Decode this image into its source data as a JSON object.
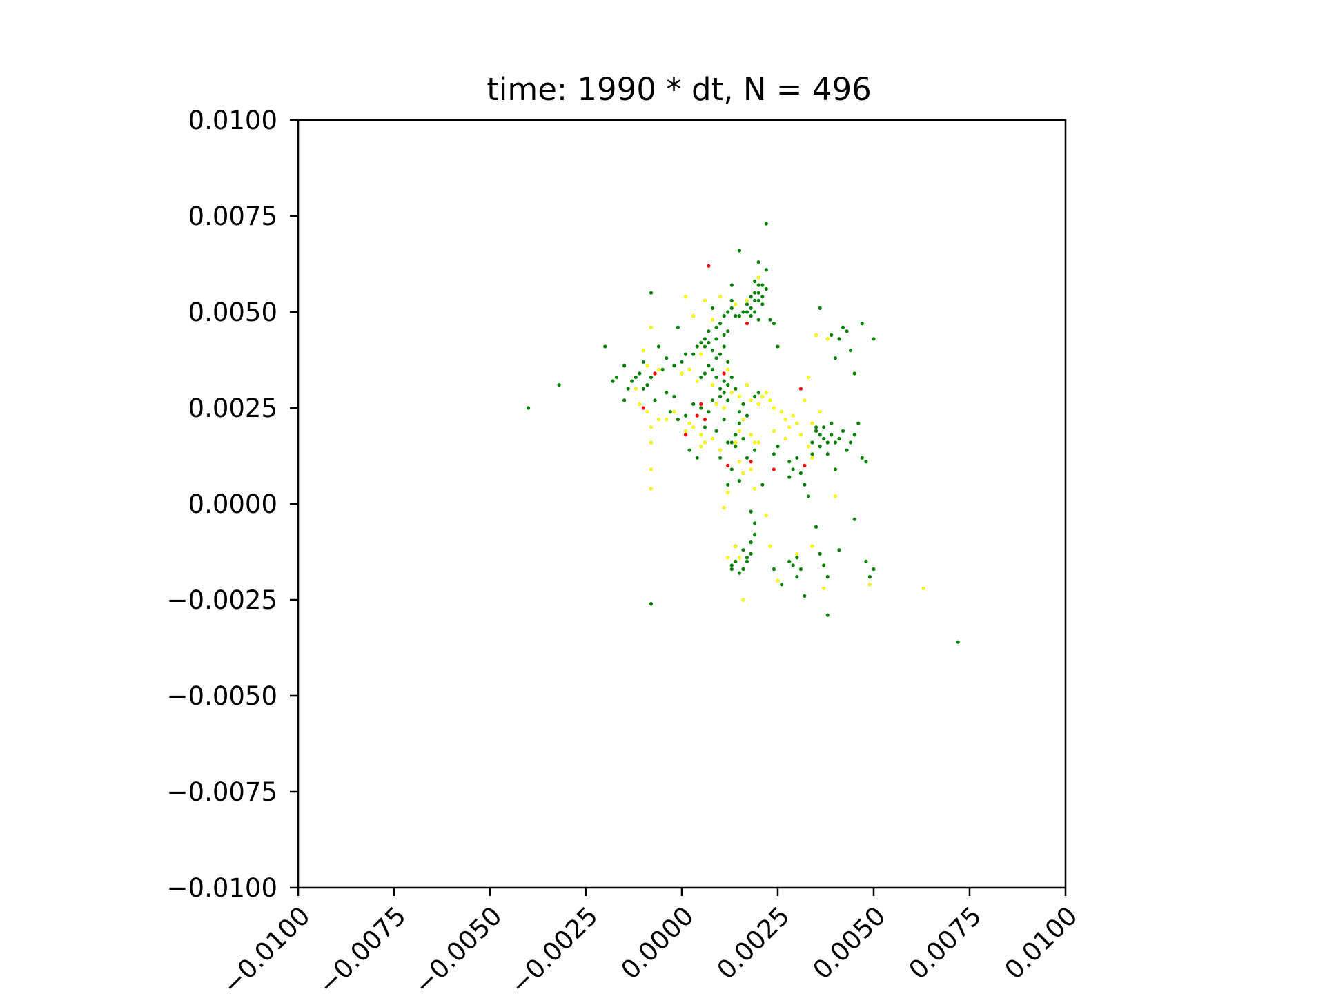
{
  "chart_data": {
    "type": "scatter",
    "title": "time: 1990 * dt, N = 496",
    "xlabel": "",
    "ylabel": "",
    "xlim": [
      -0.01,
      0.01
    ],
    "ylim": [
      -0.01,
      0.01
    ],
    "xticks": [
      "−0.0100",
      "−0.0075",
      "−0.0050",
      "−0.0025",
      "0.0000",
      "0.0025",
      "0.0050",
      "0.0075",
      "0.0100"
    ],
    "yticks": [
      "0.0100",
      "0.0075",
      "0.0050",
      "0.0025",
      "0.0000",
      "−0.0025",
      "−0.0050",
      "−0.0075",
      "−0.0100"
    ],
    "grid": false,
    "series": [
      {
        "color": "#008000",
        "points": [
          [
            0.0022,
            0.0073
          ],
          [
            0.0015,
            0.0066
          ],
          [
            0.002,
            0.0063
          ],
          [
            0.0022,
            0.0061
          ],
          [
            0.0019,
            0.0058
          ],
          [
            0.002,
            0.0057
          ],
          [
            0.0021,
            0.0057
          ],
          [
            0.0022,
            0.0056
          ],
          [
            0.002,
            0.0055
          ],
          [
            0.0019,
            0.0055
          ],
          [
            0.0021,
            0.0054
          ],
          [
            0.0018,
            0.0054
          ],
          [
            0.002,
            0.0053
          ],
          [
            0.0019,
            0.0053
          ],
          [
            0.0017,
            0.0052
          ],
          [
            0.0021,
            0.0052
          ],
          [
            0.0018,
            0.0051
          ],
          [
            0.0016,
            0.005
          ],
          [
            0.0017,
            0.005
          ],
          [
            0.0015,
            0.0049
          ],
          [
            0.0014,
            0.0049
          ],
          [
            0.0018,
            0.0049
          ],
          [
            0.0019,
            0.005
          ],
          [
            0.002,
            0.0048
          ],
          [
            0.0012,
            0.005
          ],
          [
            0.0011,
            0.0049
          ],
          [
            0.0013,
            0.0051
          ],
          [
            0.0008,
            0.0051
          ],
          [
            0.0013,
            0.0057
          ],
          [
            0.0023,
            0.0048
          ],
          [
            0.0024,
            0.0047
          ],
          [
            0.0025,
            0.0041
          ],
          [
            0.001,
            0.0047
          ],
          [
            0.0009,
            0.0046
          ],
          [
            0.0007,
            0.0045
          ],
          [
            0.0012,
            0.0045
          ],
          [
            0.0011,
            0.0044
          ],
          [
            0.0006,
            0.0043
          ],
          [
            0.0007,
            0.0042
          ],
          [
            0.0005,
            0.0042
          ],
          [
            0.0006,
            0.0041
          ],
          [
            0.0008,
            0.004
          ],
          [
            0.0004,
            0.0041
          ],
          [
            0.0003,
            0.0039
          ],
          [
            0.0009,
            0.0038
          ],
          [
            0.001,
            0.0039
          ],
          [
            0.0012,
            0.0037
          ],
          [
            0.0007,
            0.0036
          ],
          [
            0.0008,
            0.0035
          ],
          [
            0.0006,
            0.0034
          ],
          [
            0.0005,
            0.0033
          ],
          [
            0.0009,
            0.0033
          ],
          [
            0.0011,
            0.0032
          ],
          [
            0.0012,
            0.0031
          ],
          [
            0.001,
            0.003
          ],
          [
            0.0011,
            0.0029
          ],
          [
            0.001,
            0.0028
          ],
          [
            0.0012,
            0.0027
          ],
          [
            0.0013,
            0.0033
          ],
          [
            0.0014,
            0.003
          ],
          [
            0.0001,
            0.0039
          ],
          [
            0.0,
            0.0037
          ],
          [
            -0.0002,
            0.0036
          ],
          [
            -0.0004,
            0.0038
          ],
          [
            -0.0005,
            0.0035
          ],
          [
            -0.0007,
            0.0034
          ],
          [
            -0.0008,
            0.0033
          ],
          [
            -0.0009,
            0.0031
          ],
          [
            -0.001,
            0.003
          ],
          [
            -0.0011,
            0.0034
          ],
          [
            -0.0013,
            0.0032
          ],
          [
            -0.0014,
            0.003
          ],
          [
            -0.0017,
            0.0033
          ],
          [
            -0.0015,
            0.0036
          ],
          [
            -0.001,
            0.0037
          ],
          [
            -0.0006,
            0.0041
          ],
          [
            -0.0001,
            0.0046
          ],
          [
            -0.0008,
            0.0055
          ],
          [
            -0.002,
            0.0041
          ],
          [
            -0.0004,
            0.0029
          ],
          [
            -0.0002,
            0.0028
          ],
          [
            -0.0007,
            0.0027
          ],
          [
            -0.0003,
            0.0024
          ],
          [
            0.0001,
            0.0023
          ],
          [
            -0.0001,
            0.0022
          ],
          [
            0.0003,
            0.0026
          ],
          [
            0.0005,
            0.0025
          ],
          [
            0.0007,
            0.0024
          ],
          [
            0.0015,
            0.0024
          ],
          [
            0.0016,
            0.0026
          ],
          [
            0.0017,
            0.0023
          ],
          [
            0.0019,
            0.0028
          ],
          [
            0.002,
            0.0029
          ],
          [
            0.0015,
            0.0021
          ],
          [
            0.0014,
            0.0018
          ],
          [
            0.0013,
            0.0016
          ],
          [
            0.0014,
            0.0015
          ],
          [
            0.0012,
            0.0016
          ],
          [
            0.0016,
            0.0017
          ],
          [
            0.0019,
            0.0014
          ],
          [
            0.0017,
            0.0012
          ],
          [
            0.001,
            0.0012
          ],
          [
            0.0013,
            0.0009
          ],
          [
            0.0015,
            0.0006
          ],
          [
            0.0012,
            0.0005
          ],
          [
            0.0024,
            0.0013
          ],
          [
            0.0025,
            0.0015
          ],
          [
            0.0028,
            0.0011
          ],
          [
            0.0029,
            0.0009
          ],
          [
            0.0028,
            0.0007
          ],
          [
            0.003,
            0.0012
          ],
          [
            0.0031,
            0.0008
          ],
          [
            0.0032,
            0.001
          ],
          [
            0.0032,
            0.0005
          ],
          [
            0.0033,
            0.0002
          ],
          [
            0.0034,
            0.0016
          ],
          [
            0.0035,
            0.0019
          ],
          [
            0.0036,
            0.0018
          ],
          [
            0.0037,
            0.0017
          ],
          [
            0.0038,
            0.0016
          ],
          [
            0.0037,
            0.002
          ],
          [
            0.0036,
            0.0015
          ],
          [
            0.0039,
            0.0018
          ],
          [
            0.004,
            0.0016
          ],
          [
            0.0041,
            0.0017
          ],
          [
            0.0042,
            0.0019
          ],
          [
            0.0043,
            0.0014
          ],
          [
            0.0044,
            0.0016
          ],
          [
            0.0045,
            0.0018
          ],
          [
            0.0046,
            0.0021
          ],
          [
            0.0047,
            0.0012
          ],
          [
            0.0048,
            0.0011
          ],
          [
            0.0034,
            0.0013
          ],
          [
            0.0035,
            0.002
          ],
          [
            0.0038,
            0.0013
          ],
          [
            0.0039,
            0.0021
          ],
          [
            0.0036,
            0.0051
          ],
          [
            0.0041,
            0.0043
          ],
          [
            0.0043,
            0.0045
          ],
          [
            0.0044,
            0.004
          ],
          [
            0.0047,
            0.0047
          ],
          [
            0.0045,
            0.0034
          ],
          [
            0.005,
            0.0043
          ],
          [
            0.004,
            0.0038
          ],
          [
            0.0039,
            0.0044
          ],
          [
            0.0042,
            0.0046
          ],
          [
            0.0018,
            -0.0002
          ],
          [
            0.0019,
            -0.0005
          ],
          [
            0.0019,
            -0.0008
          ],
          [
            0.0018,
            -0.001
          ],
          [
            0.0016,
            -0.0012
          ],
          [
            0.0017,
            -0.0014
          ],
          [
            0.0016,
            -0.0017
          ],
          [
            0.0014,
            -0.0015
          ],
          [
            0.0013,
            -0.0016
          ],
          [
            0.0014,
            -0.0011
          ],
          [
            0.0015,
            -0.0018
          ],
          [
            0.0013,
            -0.0017
          ],
          [
            0.0018,
            -0.0013
          ],
          [
            0.0017,
            -0.0015
          ],
          [
            0.0024,
            -0.0017
          ],
          [
            0.0026,
            -0.0021
          ],
          [
            0.0028,
            -0.0015
          ],
          [
            0.003,
            -0.0014
          ],
          [
            0.0031,
            -0.0017
          ],
          [
            0.003,
            -0.0019
          ],
          [
            0.0029,
            -0.0016
          ],
          [
            0.0032,
            -0.0024
          ],
          [
            0.0035,
            -0.0006
          ],
          [
            0.0036,
            -0.0013
          ],
          [
            0.0037,
            -0.0016
          ],
          [
            0.0038,
            -0.0019
          ],
          [
            0.0041,
            -0.0012
          ],
          [
            0.0045,
            -0.0004
          ],
          [
            0.0048,
            -0.0015
          ],
          [
            0.0049,
            -0.0019
          ],
          [
            0.005,
            -0.0017
          ],
          [
            0.0038,
            -0.0029
          ],
          [
            -0.0008,
            -0.0026
          ],
          [
            0.0072,
            -0.0036
          ],
          [
            -0.004,
            0.0025
          ],
          [
            -0.0032,
            0.0031
          ],
          [
            -0.0012,
            0.0033
          ],
          [
            -0.0015,
            0.0027
          ],
          [
            -0.0018,
            0.0032
          ],
          [
            0.0011,
            0.0041
          ],
          [
            0.0009,
            0.0043
          ],
          [
            0.0013,
            0.0053
          ],
          [
            0.0008,
            0.0027
          ],
          [
            0.0011,
            0.0022
          ],
          [
            0.0006,
            0.002
          ],
          [
            0.0002,
            0.0014
          ],
          [
            0.0004,
            0.0012
          ],
          [
            0.0009,
            0.0019
          ],
          [
            0.0021,
            0.0005
          ],
          [
            0.004,
            0.0009
          ]
        ]
      },
      {
        "color": "#ffff00",
        "points": [
          [
            0.0001,
            0.0054
          ],
          [
            0.0006,
            0.0053
          ],
          [
            0.001,
            0.0054
          ],
          [
            0.0014,
            0.0052
          ],
          [
            0.002,
            0.0059
          ],
          [
            0.0017,
            0.0053
          ],
          [
            0.0003,
            0.0049
          ],
          [
            0.0008,
            0.0048
          ],
          [
            -0.0008,
            0.0046
          ],
          [
            -0.001,
            0.004
          ],
          [
            -0.0009,
            0.0036
          ],
          [
            -0.0006,
            0.0035
          ],
          [
            0.0002,
            0.0035
          ],
          [
            0.0004,
            0.0032
          ],
          [
            0.0008,
            0.0031
          ],
          [
            0.0013,
            0.0029
          ],
          [
            0.0015,
            0.0028
          ],
          [
            0.0017,
            0.0031
          ],
          [
            0.0018,
            0.0027
          ],
          [
            0.002,
            0.0026
          ],
          [
            0.0021,
            0.0028
          ],
          [
            0.0022,
            0.0029
          ],
          [
            0.0023,
            0.0027
          ],
          [
            0.0024,
            0.0025
          ],
          [
            0.0026,
            0.0024
          ],
          [
            0.0027,
            0.0022
          ],
          [
            0.0028,
            0.002
          ],
          [
            0.0029,
            0.0023
          ],
          [
            0.003,
            0.0021
          ],
          [
            0.0031,
            0.0018
          ],
          [
            0.0032,
            0.0027
          ],
          [
            0.0033,
            0.0033
          ],
          [
            0.0033,
            0.0015
          ],
          [
            0.0034,
            0.0012
          ],
          [
            -0.0002,
            0.0024
          ],
          [
            -0.0004,
            0.0022
          ],
          [
            -0.0006,
            0.0022
          ],
          [
            -0.0008,
            0.002
          ],
          [
            -0.0009,
            0.0024
          ],
          [
            -0.0011,
            0.0026
          ],
          [
            -0.0012,
            0.003
          ],
          [
            0.0003,
            0.002
          ],
          [
            0.0005,
            0.0018
          ],
          [
            0.0006,
            0.0016
          ],
          [
            0.0008,
            0.0017
          ],
          [
            0.001,
            0.0014
          ],
          [
            0.0002,
            0.0021
          ],
          [
            0.0001,
            0.0019
          ],
          [
            0.0011,
            0.0025
          ],
          [
            0.0009,
            0.0026
          ],
          [
            0.0016,
            0.0022
          ],
          [
            0.0018,
            0.0018
          ],
          [
            0.0019,
            0.0016
          ],
          [
            0.0014,
            0.0016
          ],
          [
            0.0015,
            0.0011
          ],
          [
            0.0018,
            0.0009
          ],
          [
            0.0016,
            0.0008
          ],
          [
            0.0012,
            0.0003
          ],
          [
            0.0011,
            -0.0001
          ],
          [
            0.0019,
            0.0004
          ],
          [
            0.0014,
            -0.0011
          ],
          [
            0.0015,
            -0.0014
          ],
          [
            0.0012,
            -0.0014
          ],
          [
            0.0016,
            -0.0025
          ],
          [
            0.0022,
            -0.0003
          ],
          [
            0.0023,
            -0.0011
          ],
          [
            0.0025,
            -0.002
          ],
          [
            0.003,
            -0.0013
          ],
          [
            0.0034,
            -0.0011
          ],
          [
            0.0037,
            -0.0022
          ],
          [
            0.004,
            0.0002
          ],
          [
            0.0049,
            -0.0021
          ],
          [
            0.0063,
            -0.0022
          ],
          [
            0.0035,
            0.0044
          ],
          [
            0.0038,
            0.0043
          ],
          [
            0.0034,
            0.0021
          ],
          [
            0.0036,
            0.0024
          ],
          [
            -0.0008,
            0.0009
          ],
          [
            -0.0008,
            0.0016
          ],
          [
            -0.0008,
            0.0004
          ],
          [
            0.0,
            0.0034
          ],
          [
            0.0005,
            0.0039
          ],
          [
            0.0012,
            0.0035
          ],
          [
            0.0005,
            0.0015
          ],
          [
            0.0015,
            0.0019
          ],
          [
            0.0024,
            0.0019
          ],
          [
            0.0027,
            0.0017
          ],
          [
            0.002,
            0.0016
          ]
        ]
      },
      {
        "color": "#ff0000",
        "points": [
          [
            0.0007,
            0.0062
          ],
          [
            -0.0007,
            0.0034
          ],
          [
            0.0011,
            0.0034
          ],
          [
            -0.001,
            0.0025
          ],
          [
            0.0005,
            0.0026
          ],
          [
            0.0004,
            0.0023
          ],
          [
            0.0001,
            0.0018
          ],
          [
            0.0006,
            0.0022
          ],
          [
            0.0012,
            0.001
          ],
          [
            0.0018,
            0.0011
          ],
          [
            0.0024,
            0.0009
          ],
          [
            0.0031,
            0.003
          ],
          [
            0.0032,
            0.001
          ],
          [
            0.0017,
            0.0047
          ]
        ]
      }
    ]
  }
}
